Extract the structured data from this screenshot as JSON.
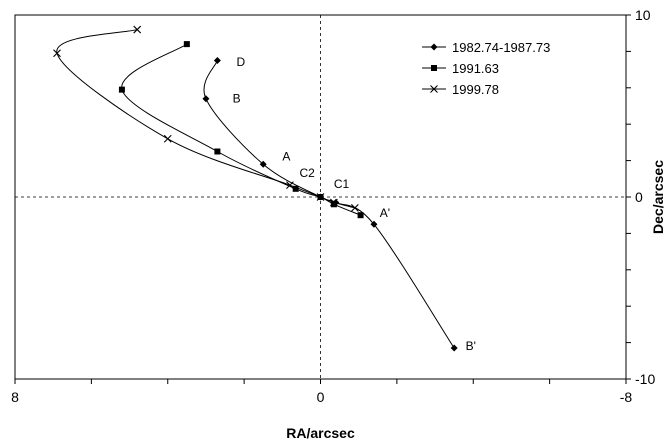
{
  "chart_data": {
    "type": "scatter",
    "xlabel": "RA/arcsec",
    "ylabel": "Dec/arcsec",
    "xlim": [
      8,
      -8
    ],
    "ylim": [
      -10,
      10
    ],
    "x_ticks": [
      8,
      0,
      -8
    ],
    "y_ticks": [
      10,
      0,
      -10
    ],
    "x_reversed": true,
    "grid": false,
    "zero_lines": true,
    "legend_position": "top-right",
    "series": [
      {
        "name": "1982.74-1987.73",
        "marker": "diamond",
        "x": [
          2.7,
          3.0,
          1.5,
          0.0,
          -0.4,
          -1.4,
          -3.5
        ],
        "y": [
          7.5,
          5.4,
          1.8,
          0.0,
          -0.3,
          -1.5,
          -8.3
        ]
      },
      {
        "name": "1991.63",
        "marker": "square",
        "x": [
          3.5,
          5.2,
          2.7,
          0.65,
          0.0,
          -0.35,
          -1.05
        ],
        "y": [
          8.4,
          5.9,
          2.5,
          0.45,
          0.0,
          -0.4,
          -1.0
        ]
      },
      {
        "name": "1999.78",
        "marker": "x",
        "x": [
          4.8,
          6.9,
          4.0,
          0.8,
          0.0,
          -0.35,
          -0.9
        ],
        "y": [
          9.2,
          7.9,
          3.2,
          0.65,
          0.0,
          -0.3,
          -0.6
        ]
      }
    ],
    "annotations": [
      {
        "text": "D",
        "x": 2.2,
        "y": 7.2
      },
      {
        "text": "B",
        "x": 2.3,
        "y": 5.2
      },
      {
        "text": "A",
        "x": 1.0,
        "y": 2.0
      },
      {
        "text": "C2",
        "x": 0.55,
        "y": 1.1
      },
      {
        "text": "C1",
        "x": -0.35,
        "y": 0.5
      },
      {
        "text": "A'",
        "x": -1.55,
        "y": -1.1
      },
      {
        "text": "B'",
        "x": -3.8,
        "y": -8.4
      }
    ]
  }
}
